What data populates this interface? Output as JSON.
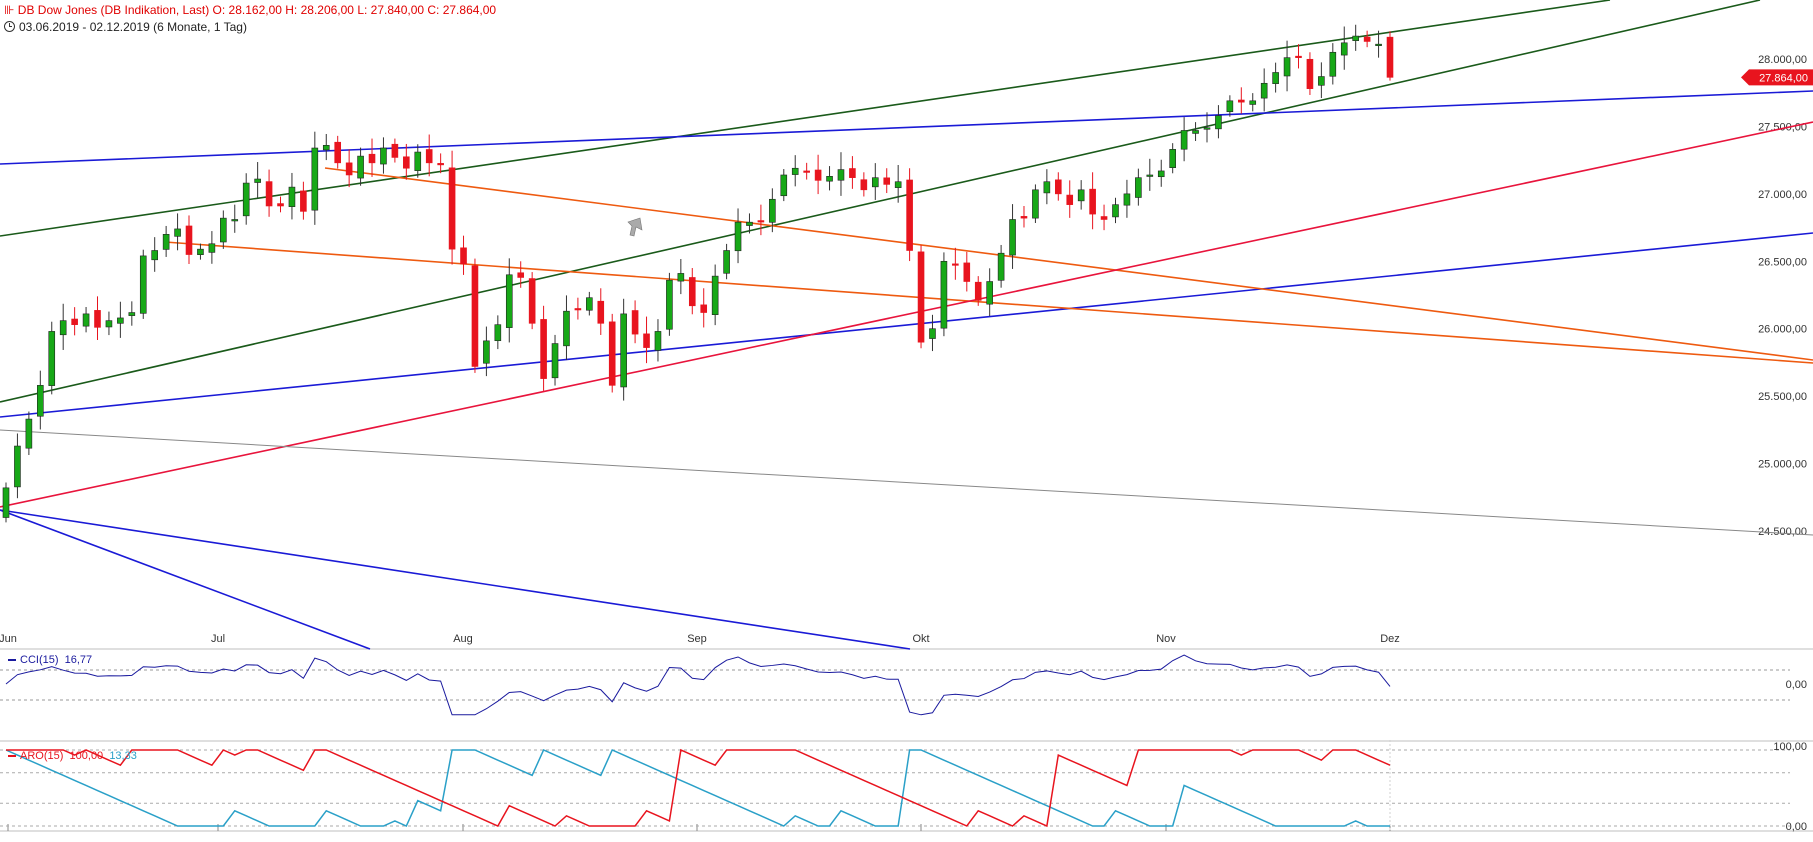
{
  "header": {
    "line1": "DB Dow Jones (DB Indikation, Last)  O: 28.162,00  H: 28.206,00  L: 27.840,00  C: 27.864,00",
    "line2": "03.06.2019 - 02.12.2019   (6 Monate, 1 Tag)",
    "icon": "bar-chart-icon"
  },
  "colors": {
    "up": "#17a817",
    "down": "#e8141e",
    "green_line": "#1a5a1a",
    "blue_line": "#1a1ad6",
    "orange_line": "#ee5a10",
    "red_line": "#e8143c",
    "grey_line": "#888888",
    "cci": "#1a1a9e",
    "aro_up": "#e8141e",
    "aro_down": "#2aa0c8"
  },
  "price_axis": {
    "ticks": [
      "28.000,00",
      "27.500,00",
      "27.000,00",
      "26.500,00",
      "26.000,00",
      "25.500,00",
      "25.000,00",
      "24.500,00"
    ]
  },
  "last_price": "27.864,00",
  "cci_axis": {
    "ticks": [
      "0,00"
    ]
  },
  "aro_axis": {
    "ticks": [
      "100,00",
      "0,00"
    ]
  },
  "chart_data": {
    "type": "candlestick",
    "title": "DB Dow Jones (DB Indikation, Last)",
    "period": "03.06.2019 - 02.12.2019",
    "months": [
      "Jun",
      "Jul",
      "Aug",
      "Sep",
      "Okt",
      "Nov",
      "Dez"
    ],
    "ylim": [
      24400,
      28250
    ],
    "last": {
      "open": 28162,
      "high": 28206,
      "low": 27840,
      "close": 27864
    },
    "closes": [
      24820,
      25130,
      25330,
      25580,
      25980,
      26060,
      26030,
      26110,
      26010,
      26060,
      26080,
      26120,
      26540,
      26580,
      26700,
      26740,
      26550,
      26590,
      26630,
      26820,
      26810,
      27080,
      27110,
      26910,
      26910,
      27050,
      26870,
      27340,
      27360,
      27230,
      27140,
      27280,
      27230,
      27340,
      27270,
      27190,
      27310,
      27230,
      27220,
      26590,
      26480,
      25720,
      25910,
      26030,
      26400,
      26380,
      26040,
      25630,
      25890,
      26130,
      26140,
      26230,
      26040,
      25580,
      26110,
      25960,
      25860,
      25980,
      26360,
      26410,
      26170,
      26120,
      26390,
      26580,
      26790,
      26790,
      26800,
      26960,
      27140,
      27190,
      27160,
      27100,
      27130,
      27180,
      27120,
      27030,
      27120,
      27070,
      27090,
      26580,
      25900,
      26000,
      26500,
      26470,
      26350,
      26210,
      26350,
      26560,
      26810,
      26820,
      27030,
      27090,
      27000,
      26920,
      27030,
      26850,
      26810,
      26920,
      27000,
      27120,
      27140,
      27170,
      27330,
      27470,
      27470,
      27490,
      27580,
      27690,
      27680,
      27690,
      27820,
      27900,
      28010,
      28010,
      27780,
      27870,
      28050,
      28120,
      28170,
      28130,
      28110,
      27864
    ],
    "cci": {
      "label": "CCI(15)",
      "value": "16,77"
    },
    "aroon": {
      "label": "ARO(15)",
      "up_value": "100,00",
      "down_value": "13,33"
    }
  }
}
